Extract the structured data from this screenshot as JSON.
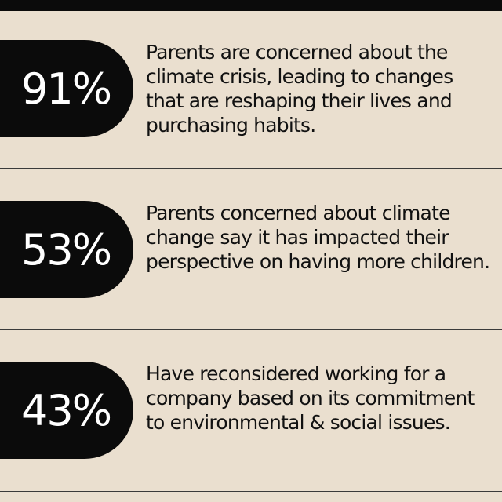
{
  "stats": [
    {
      "value": "91%",
      "description": "Parents are concerned about the climate crisis, leading to changes that are reshaping their lives and purchasing habits."
    },
    {
      "value": "53%",
      "description": "Parents concerned about climate change say it has impacted their perspective on having more children."
    },
    {
      "value": "43%",
      "description": "Have reconsidered working for a company based on its commitment to environmental & social issues."
    }
  ],
  "colors": {
    "background": "#EADFCF",
    "pill": "#0b0b0b",
    "pill_text": "#ffffff",
    "text": "#111111"
  }
}
